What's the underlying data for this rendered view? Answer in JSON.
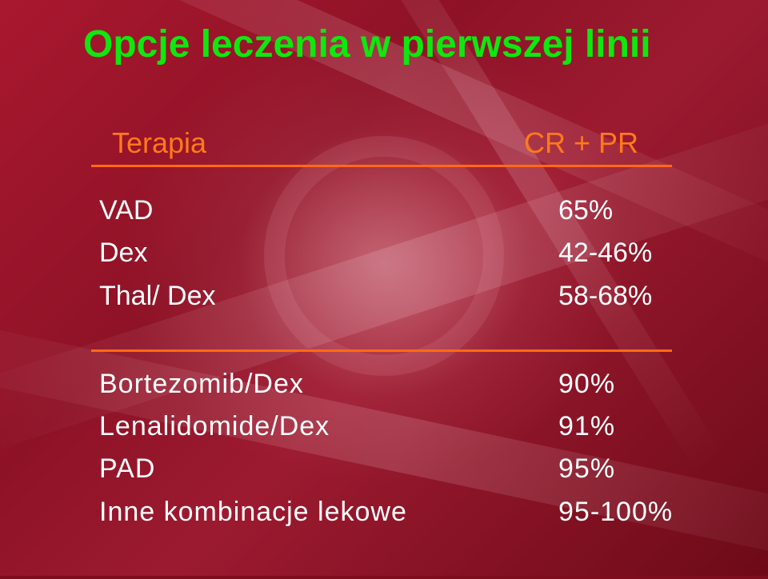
{
  "slide": {
    "title": "Opcje leczenia w pierwszej linii",
    "headers": {
      "therapy": "Terapia",
      "response": "CR + PR"
    },
    "group1": [
      {
        "therapy": "VAD",
        "response": "65%"
      },
      {
        "therapy": "Dex",
        "response": "42-46%"
      },
      {
        "therapy": "Thal/ Dex",
        "response": "58-68%"
      }
    ],
    "group2": [
      {
        "therapy": "Bortezomib/Dex",
        "response": "90%"
      },
      {
        "therapy": "Lenalidomide/Dex",
        "response": "91%"
      },
      {
        "therapy": "PAD",
        "response": "95%"
      },
      {
        "therapy": "Inne kombinacje lekowe",
        "response": "95-100%"
      }
    ]
  },
  "colors": {
    "title": "#0ee80e",
    "header": "#ff7a1a",
    "rule": "#ff6a14",
    "body_text": "#ffffff",
    "background": "#8e1226"
  }
}
